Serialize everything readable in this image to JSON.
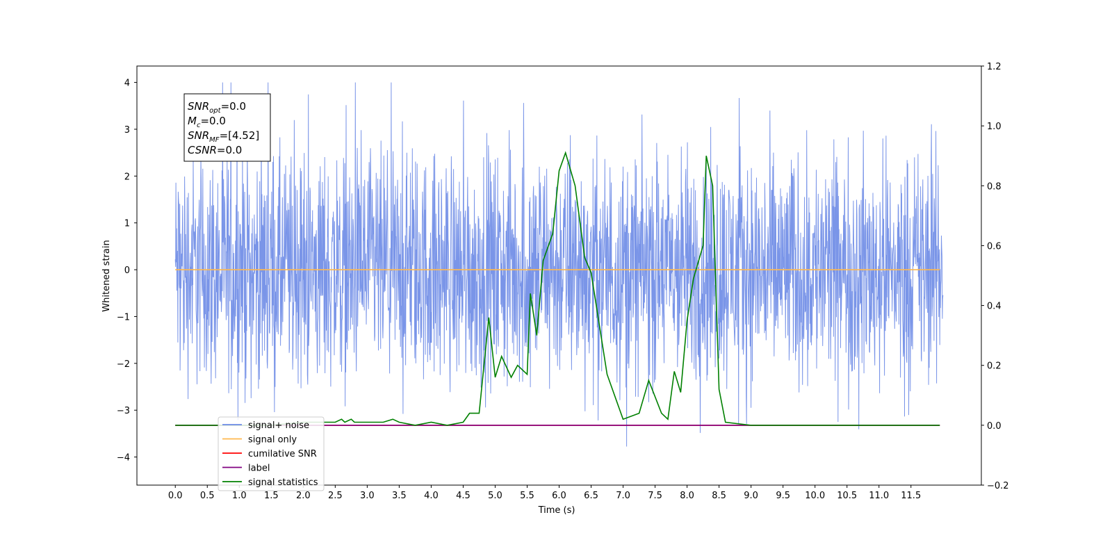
{
  "chart_data": {
    "type": "line",
    "title": "",
    "xlabel": "Time (s)",
    "ylabel": "Whitened strain",
    "xlim": [
      -0.6,
      12.6
    ],
    "ylim": [
      -4.6,
      4.35
    ],
    "y2lim": [
      -0.2,
      1.2
    ],
    "x_ticks": [
      "0.0",
      "0.5",
      "1.0",
      "1.5",
      "2.0",
      "2.5",
      "3.0",
      "3.5",
      "4.0",
      "4.5",
      "5.0",
      "5.5",
      "6.0",
      "6.5",
      "7.0",
      "7.5",
      "8.0",
      "8.5",
      "9.0",
      "9.5",
      "10.0",
      "10.5",
      "11.0",
      "11.5"
    ],
    "y_ticks": [
      "4",
      "3",
      "2",
      "1",
      "0",
      "−1",
      "−2",
      "−3",
      "−4"
    ],
    "y2_ticks": [
      "1.2",
      "1.0",
      "0.8",
      "0.6",
      "0.4",
      "0.2",
      "0.0",
      "−0.2"
    ],
    "legend_position": "lower-left",
    "info_box": {
      "lines": [
        {
          "base": "SNR",
          "sub": "opt",
          "value": "=0.0"
        },
        {
          "base": "M",
          "sub": "c",
          "value": "=0.0"
        },
        {
          "base": "SNR",
          "sub": "MF",
          "value": "=[4.52]"
        },
        {
          "base": "CSNR",
          "sub": "",
          "value": "=0.0"
        }
      ]
    },
    "series": [
      {
        "name": "signal+ noise",
        "color": "#6b8ae6",
        "axis": "left",
        "kind": "noise",
        "duration": 12.0,
        "envelope": 1.2,
        "spike_max": 4.0
      },
      {
        "name": "signal only",
        "color": "#ffb84d",
        "axis": "left",
        "kind": "constant",
        "value": 0.0
      },
      {
        "name": "cumilative SNR",
        "color": "#ff0000",
        "axis": "right",
        "kind": "constant",
        "value": 0.0
      },
      {
        "name": "label",
        "color": "#800080",
        "axis": "right",
        "kind": "constant",
        "value": 0.0
      },
      {
        "name": "signal statistics",
        "color": "#008000",
        "axis": "right",
        "kind": "points",
        "x": [
          0.0,
          0.5,
          1.0,
          1.5,
          2.0,
          2.25,
          2.5,
          2.6,
          2.65,
          2.75,
          2.8,
          3.0,
          3.25,
          3.4,
          3.5,
          3.75,
          4.0,
          4.25,
          4.5,
          4.6,
          4.75,
          4.9,
          5.0,
          5.1,
          5.25,
          5.35,
          5.5,
          5.55,
          5.65,
          5.75,
          5.9,
          6.0,
          6.1,
          6.25,
          6.4,
          6.5,
          6.75,
          7.0,
          7.25,
          7.4,
          7.6,
          7.7,
          7.8,
          7.9,
          8.0,
          8.1,
          8.25,
          8.3,
          8.4,
          8.5,
          8.6,
          9.0,
          10.0,
          11.0,
          11.95
        ],
        "y": [
          0.0,
          0.0,
          0.0,
          0.0,
          0.01,
          0.01,
          0.01,
          0.02,
          0.01,
          0.02,
          0.01,
          0.01,
          0.01,
          0.02,
          0.01,
          0.0,
          0.01,
          0.0,
          0.01,
          0.04,
          0.04,
          0.36,
          0.16,
          0.23,
          0.16,
          0.2,
          0.17,
          0.44,
          0.3,
          0.55,
          0.64,
          0.85,
          0.91,
          0.8,
          0.56,
          0.51,
          0.17,
          0.02,
          0.04,
          0.15,
          0.04,
          0.02,
          0.18,
          0.11,
          0.35,
          0.49,
          0.6,
          0.9,
          0.8,
          0.12,
          0.01,
          0.0,
          0.0,
          0.0,
          0.0
        ]
      }
    ]
  }
}
